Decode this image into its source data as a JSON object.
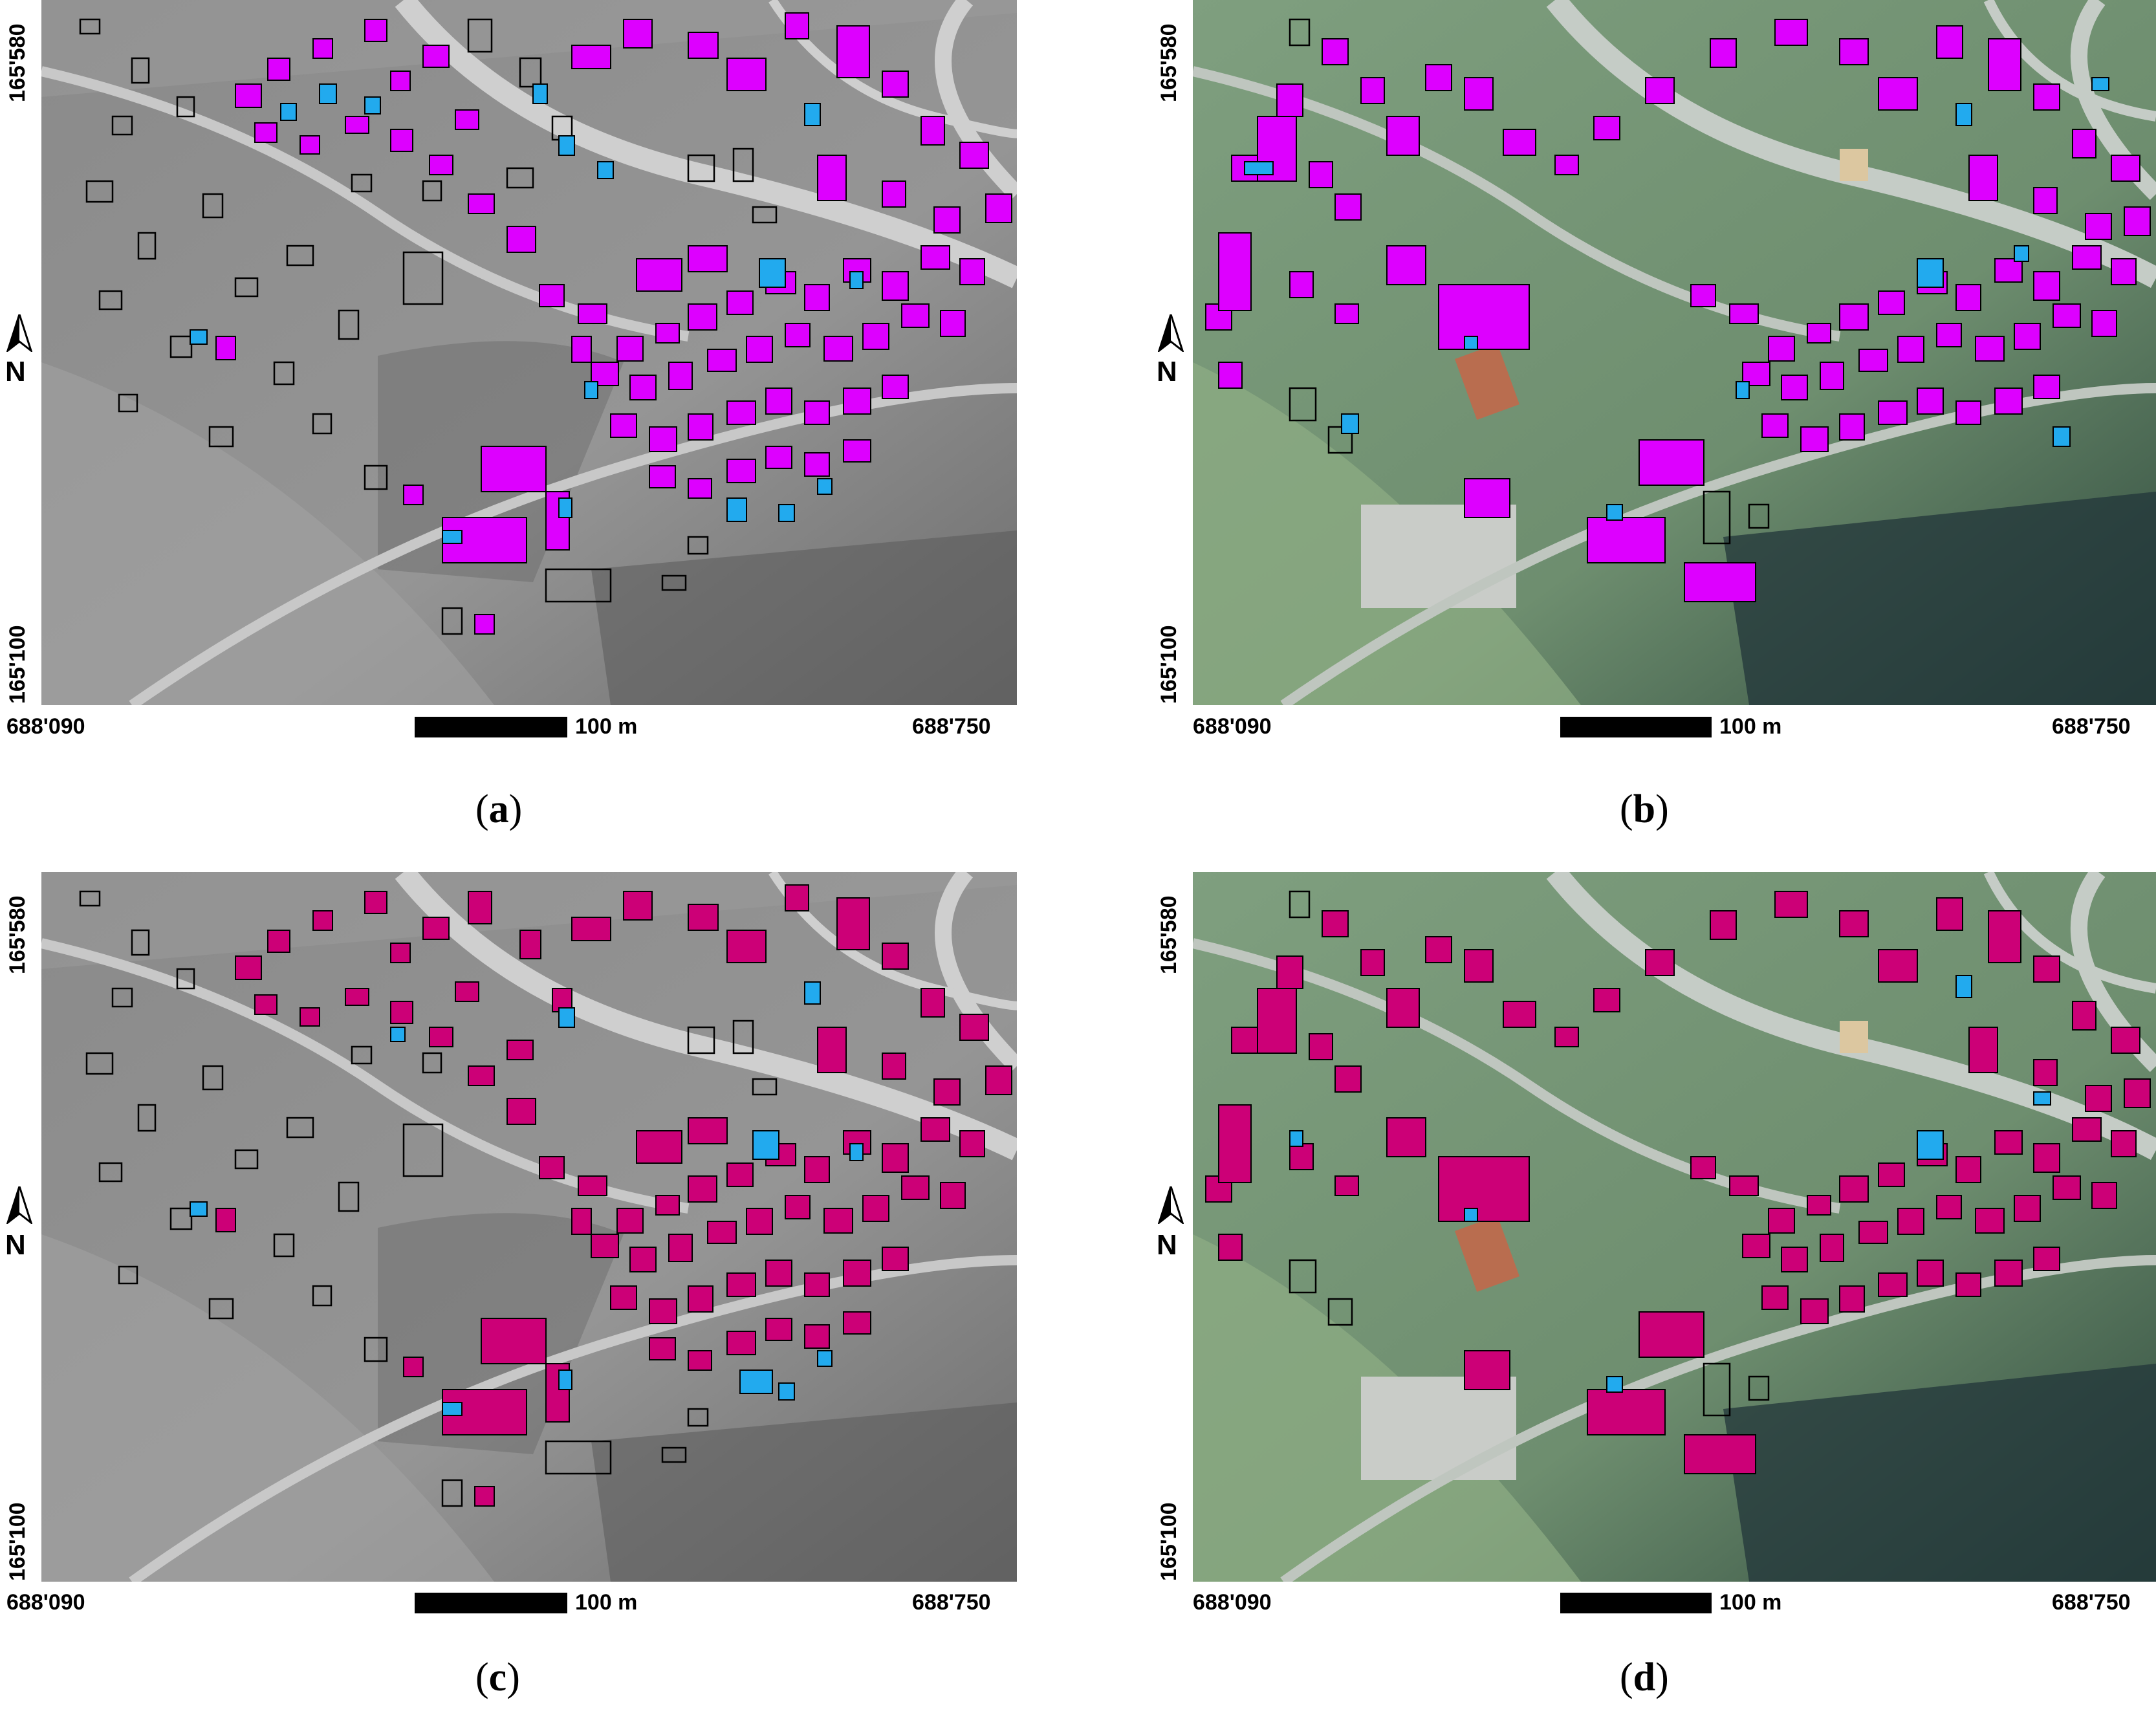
{
  "figure": {
    "panels": [
      {
        "id": "a",
        "caption": "a",
        "basemap": "grayscale historical aerial photo",
        "building_fill": "#dd00ff",
        "change_fill": "#22aaee"
      },
      {
        "id": "b",
        "caption": "b",
        "basemap": "colour orthophoto",
        "building_fill": "#dd00ff",
        "change_fill": "#22aaee"
      },
      {
        "id": "c",
        "caption": "c",
        "basemap": "grayscale historical aerial photo",
        "building_fill": "#cc0077",
        "change_fill": "#22aaee"
      },
      {
        "id": "d",
        "caption": "d",
        "basemap": "colour orthophoto",
        "building_fill": "#cc0077",
        "change_fill": "#22aaee"
      }
    ],
    "coords": {
      "x_min": "688'090",
      "x_max": "688'750",
      "y_min": "165'100",
      "y_max": "165'580"
    },
    "scale_label": "100 m",
    "north_label": "N",
    "colors": {
      "outline_only": "#000000",
      "gray_base": "#8e8e8e",
      "color_base": "#6f9270",
      "road_gray": "#c9c9c9",
      "road_color": "#b9c2ba"
    }
  }
}
